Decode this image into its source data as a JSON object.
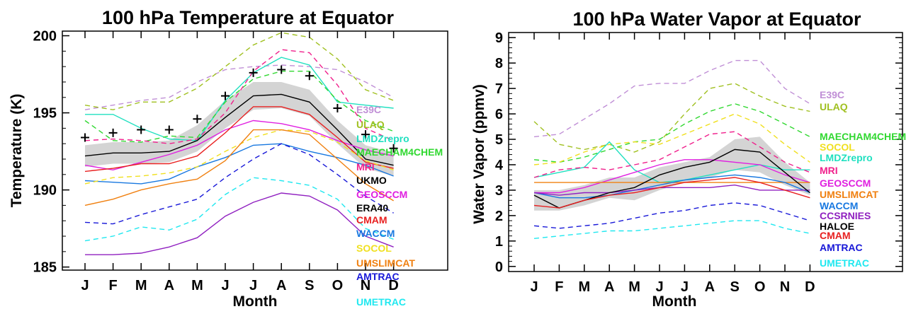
{
  "chart_data": [
    {
      "type": "line",
      "title": "100 hPa Temperature at Equator",
      "xlabel": "Month",
      "ylabel": "Temperature (K)",
      "categories": [
        "J",
        "F",
        "M",
        "A",
        "M",
        "J",
        "J",
        "A",
        "S",
        "O",
        "N",
        "D"
      ],
      "ylim": [
        184.8,
        200.3
      ],
      "yticks": [
        185,
        190,
        195,
        200
      ],
      "grid": false,
      "legend_placement": "right",
      "band": {
        "lower": [
          191.5,
          191.7,
          191.7,
          191.8,
          192.5,
          194.0,
          195.2,
          195.3,
          194.8,
          193.0,
          191.4,
          190.9
        ],
        "upper": [
          192.9,
          193.1,
          193.1,
          193.2,
          194.2,
          195.8,
          197.0,
          197.0,
          196.5,
          194.5,
          192.9,
          192.4
        ]
      },
      "series": [
        {
          "name": "E39C",
          "color": "#c08fd6",
          "dash": true,
          "values": [
            195.2,
            195.5,
            195.8,
            196.0,
            197.0,
            197.8,
            198.0,
            198.1,
            198.0,
            197.8,
            197.0,
            196.0
          ]
        },
        {
          "name": "ULAQ",
          "color": "#a0c020",
          "dash": true,
          "values": [
            195.5,
            195.2,
            195.7,
            195.7,
            196.6,
            198.0,
            199.4,
            200.2,
            199.9,
            198.5,
            196.5,
            195.8
          ]
        },
        {
          "name": "LMDZrepro",
          "color": "#20e0c0",
          "dash": false,
          "values": [
            194.9,
            194.9,
            194.0,
            193.3,
            193.2,
            195.8,
            197.6,
            198.6,
            198.1,
            195.7,
            195.5,
            195.3
          ]
        },
        {
          "name": "MAECHAM4CHEM",
          "color": "#30d830",
          "dash": true,
          "values": [
            194.5,
            193.2,
            193.1,
            193.5,
            193.4,
            195.7,
            197.2,
            197.7,
            197.7,
            195.8,
            194.5,
            193.8
          ]
        },
        {
          "name": "MRI",
          "color": "#f0208c",
          "dash": true,
          "values": [
            193.2,
            193.3,
            193.2,
            193.0,
            193.3,
            195.0,
            197.7,
            199.1,
            198.9,
            196.8,
            194.0,
            193.2
          ]
        },
        {
          "name": "UKMO",
          "color": "#000000",
          "dash": false,
          "values": [
            192.2,
            192.4,
            192.4,
            192.5,
            193.2,
            194.7,
            196.1,
            196.2,
            195.7,
            193.9,
            192.0,
            191.6
          ]
        },
        {
          "name": "GEOSCCM",
          "color": "#e020e0",
          "dash": false,
          "values": [
            191.6,
            191.3,
            191.8,
            192.3,
            192.9,
            193.9,
            194.5,
            194.3,
            193.9,
            193.2,
            192.6,
            192.2
          ]
        },
        {
          "name": "ERA40",
          "color": "#000000",
          "dash": false,
          "marker": "+",
          "values": [
            193.4,
            193.7,
            193.9,
            193.9,
            194.6,
            196.1,
            197.6,
            197.8,
            197.4,
            195.3,
            193.6,
            192.7
          ]
        },
        {
          "name": "CMAM",
          "color": "#e82020",
          "dash": false,
          "values": [
            191.2,
            191.4,
            191.7,
            191.7,
            192.2,
            193.7,
            195.4,
            195.4,
            194.9,
            193.4,
            191.8,
            191.4
          ]
        },
        {
          "name": "WACCM",
          "color": "#1878e0",
          "dash": false,
          "values": [
            190.6,
            190.5,
            190.4,
            190.7,
            191.5,
            192.1,
            192.9,
            193.0,
            192.5,
            192.1,
            191.6,
            190.9
          ]
        },
        {
          "name": "SOCOL",
          "color": "#f0e020",
          "dash": true,
          "values": [
            190.4,
            190.8,
            190.9,
            191.1,
            191.5,
            192.5,
            193.4,
            193.9,
            193.8,
            193.1,
            191.9,
            191.3
          ]
        },
        {
          "name": "UMSLIMCAT",
          "color": "#f08010",
          "dash": false,
          "values": [
            189.0,
            189.4,
            190.0,
            190.4,
            190.7,
            191.9,
            193.9,
            193.9,
            193.6,
            192.0,
            190.4,
            189.3
          ]
        },
        {
          "name": "AMTRAC",
          "color": "#1818d8",
          "dash": true,
          "values": [
            187.9,
            187.8,
            188.4,
            188.9,
            189.4,
            190.8,
            192.0,
            193.0,
            192.3,
            191.0,
            189.6,
            188.5
          ]
        },
        {
          "name": "UMETRAC",
          "color": "#20e8f0",
          "dash": true,
          "values": [
            186.7,
            187.0,
            187.6,
            187.4,
            188.1,
            189.7,
            190.8,
            190.6,
            190.3,
            189.4,
            187.5,
            186.8
          ]
        },
        {
          "name": "CCSRNIES",
          "color": "#9020c0",
          "dash": false,
          "values": [
            185.8,
            185.8,
            185.9,
            186.3,
            186.9,
            188.3,
            189.2,
            189.8,
            189.6,
            188.7,
            187.0,
            186.3
          ]
        }
      ]
    },
    {
      "type": "line",
      "title": "100 hPa Water Vapor at Equator",
      "xlabel": "Month",
      "ylabel": "Water Vapor (ppmv)",
      "categories": [
        "J",
        "F",
        "M",
        "A",
        "M",
        "J",
        "J",
        "A",
        "S",
        "O",
        "N",
        "D"
      ],
      "ylim": [
        -0.2,
        9.2
      ],
      "yticks": [
        0,
        1,
        2,
        3,
        4,
        5,
        6,
        7,
        8,
        9
      ],
      "grid": false,
      "legend_placement": "right",
      "band": {
        "lower": [
          2.2,
          2.2,
          2.4,
          2.7,
          2.6,
          3.0,
          3.3,
          3.5,
          3.8,
          3.7,
          3.2,
          2.8
        ],
        "upper": [
          3.0,
          3.0,
          3.2,
          3.5,
          3.5,
          3.9,
          4.1,
          4.3,
          5.0,
          5.1,
          4.1,
          3.3
        ]
      },
      "series": [
        {
          "name": "E39C",
          "color": "#c08fd6",
          "dash": true,
          "values": [
            5.1,
            5.2,
            5.8,
            6.4,
            7.1,
            7.2,
            7.2,
            7.7,
            8.1,
            8.1,
            7.0,
            6.4
          ]
        },
        {
          "name": "ULAQ",
          "color": "#a0c020",
          "dash": true,
          "values": [
            5.7,
            4.8,
            4.6,
            4.8,
            4.5,
            4.9,
            6.0,
            7.0,
            7.2,
            6.7,
            6.3,
            6.1
          ]
        },
        {
          "name": "MAECHAM4CHEM",
          "color": "#30d830",
          "dash": true,
          "values": [
            4.2,
            4.1,
            4.3,
            4.6,
            4.9,
            5.0,
            5.6,
            6.1,
            6.4,
            6.1,
            5.6,
            5.1
          ]
        },
        {
          "name": "SOCOL",
          "color": "#f0e020",
          "dash": true,
          "values": [
            4.0,
            4.1,
            4.5,
            4.8,
            4.9,
            4.8,
            5.2,
            5.6,
            6.0,
            5.6,
            4.8,
            4.1
          ]
        },
        {
          "name": "LMDZrepro",
          "color": "#20e0c0",
          "dash": false,
          "values": [
            3.5,
            3.7,
            3.9,
            4.9,
            3.8,
            3.3,
            3.4,
            3.6,
            3.8,
            4.0,
            3.8,
            3.8
          ]
        },
        {
          "name": "MRI",
          "color": "#f0208c",
          "dash": true,
          "values": [
            3.5,
            3.8,
            3.9,
            3.8,
            4.0,
            4.2,
            4.7,
            5.2,
            5.3,
            4.7,
            4.1,
            3.7
          ]
        },
        {
          "name": "GEOSCCM",
          "color": "#e020e0",
          "dash": false,
          "values": [
            2.9,
            2.9,
            3.1,
            3.4,
            3.7,
            4.0,
            4.2,
            4.2,
            4.1,
            4.0,
            3.6,
            3.3
          ]
        },
        {
          "name": "UMSLIMCAT",
          "color": "#f08010",
          "dash": false,
          "values": [
            3.3,
            3.3,
            3.3,
            3.3,
            3.3,
            3.3,
            3.3,
            3.3,
            3.3,
            3.3,
            3.3,
            3.3
          ]
        },
        {
          "name": "WACCM",
          "color": "#1878e0",
          "dash": false,
          "values": [
            2.9,
            2.7,
            2.7,
            2.8,
            3.0,
            3.2,
            3.4,
            3.5,
            3.6,
            3.5,
            3.3,
            2.9
          ]
        },
        {
          "name": "CCSRNIES",
          "color": "#9020c0",
          "dash": false,
          "values": [
            2.9,
            2.8,
            2.9,
            2.9,
            3.0,
            3.1,
            3.1,
            3.1,
            3.2,
            3.0,
            3.0,
            3.0
          ]
        },
        {
          "name": "HALOE",
          "color": "#000000",
          "dash": false,
          "values": [
            2.8,
            2.3,
            2.6,
            2.9,
            3.1,
            3.6,
            3.9,
            4.1,
            4.6,
            4.5,
            3.7,
            2.9
          ]
        },
        {
          "name": "CMAM",
          "color": "#e82020",
          "dash": false,
          "values": [
            2.4,
            2.3,
            2.6,
            2.8,
            2.9,
            3.1,
            3.3,
            3.4,
            3.5,
            3.3,
            3.0,
            2.7
          ]
        },
        {
          "name": "AMTRAC",
          "color": "#1818d8",
          "dash": true,
          "values": [
            1.6,
            1.5,
            1.6,
            1.7,
            1.9,
            2.1,
            2.2,
            2.4,
            2.5,
            2.4,
            2.1,
            1.8
          ]
        },
        {
          "name": "UMETRAC",
          "color": "#20e8f0",
          "dash": true,
          "values": [
            1.1,
            1.2,
            1.3,
            1.4,
            1.4,
            1.5,
            1.6,
            1.7,
            1.8,
            1.8,
            1.5,
            1.3
          ]
        }
      ]
    }
  ]
}
